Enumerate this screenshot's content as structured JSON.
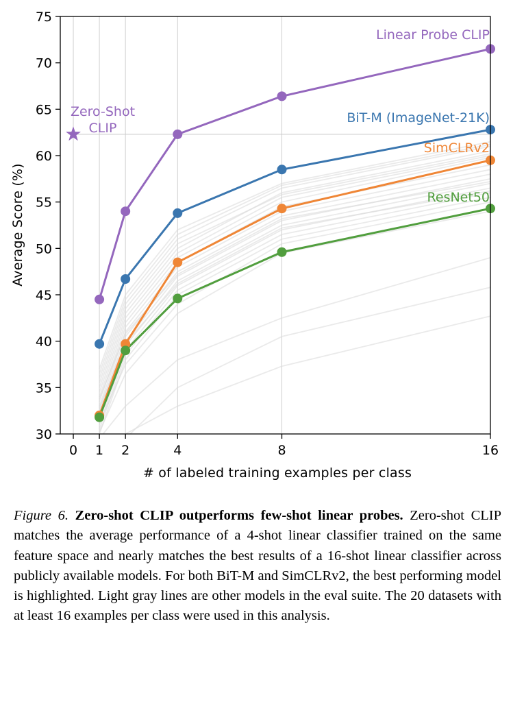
{
  "chart_data": {
    "type": "line",
    "xlabel": "# of labeled training examples per class",
    "ylabel": "Average Score (%)",
    "xlim": [
      -0.5,
      16
    ],
    "ylim": [
      30,
      75
    ],
    "xticks": [
      0,
      1,
      2,
      4,
      8,
      16
    ],
    "yticks": [
      30,
      35,
      40,
      45,
      50,
      55,
      60,
      65,
      70,
      75
    ],
    "grid": "vertical at x ticks",
    "x": [
      1,
      2,
      4,
      8,
      16
    ],
    "series": [
      {
        "name": "Linear Probe CLIP",
        "color": "#9467bd",
        "values": [
          44.5,
          54.0,
          62.3,
          66.4,
          71.5
        ]
      },
      {
        "name": "BiT-M (ImageNet-21K)",
        "color": "#3a76af",
        "values": [
          39.7,
          46.7,
          53.8,
          58.5,
          62.8
        ]
      },
      {
        "name": "SimCLRv2",
        "color": "#ef8636",
        "values": [
          32.0,
          39.7,
          48.5,
          54.3,
          59.5
        ]
      },
      {
        "name": "ResNet50",
        "color": "#519e3e",
        "values": [
          31.8,
          39.0,
          44.6,
          49.6,
          54.3
        ]
      }
    ],
    "zero_shot": {
      "label_line1": "Zero-Shot",
      "label_line2": "CLIP",
      "x": 0,
      "y": 62.3,
      "color": "#9467bd"
    },
    "reference_line_y": 62.3,
    "background_models_color": "#d9d9d9",
    "background_models": [
      [
        36.0,
        44.0,
        51.0,
        56.5,
        61.0
      ],
      [
        35.0,
        43.0,
        50.0,
        56.0,
        60.5
      ],
      [
        34.5,
        42.5,
        49.5,
        55.5,
        60.0
      ],
      [
        34.0,
        42.0,
        49.0,
        55.0,
        59.8
      ],
      [
        33.5,
        41.5,
        48.5,
        54.5,
        59.0
      ],
      [
        33.0,
        41.0,
        48.0,
        54.0,
        58.5
      ],
      [
        32.5,
        40.5,
        47.5,
        53.5,
        58.0
      ],
      [
        32.0,
        40.0,
        47.0,
        53.0,
        57.5
      ],
      [
        31.5,
        39.5,
        46.5,
        52.5,
        57.0
      ],
      [
        31.0,
        39.0,
        46.0,
        52.0,
        56.5
      ],
      [
        30.5,
        38.5,
        45.5,
        51.5,
        56.0
      ],
      [
        30.0,
        38.0,
        45.0,
        51.0,
        55.5
      ],
      [
        37.0,
        45.0,
        52.0,
        57.0,
        61.5
      ],
      [
        36.5,
        44.5,
        51.5,
        56.8,
        61.2
      ],
      [
        35.5,
        43.5,
        50.5,
        55.8,
        60.2
      ],
      [
        33.8,
        40.8,
        47.2,
        53.2,
        57.2
      ],
      [
        32.8,
        39.8,
        46.2,
        52.2,
        56.2
      ],
      [
        31.2,
        37.5,
        44.0,
        50.5,
        55.0
      ],
      [
        30.2,
        36.5,
        43.0,
        49.5,
        54.0
      ],
      [
        29.5,
        33.0,
        38.0,
        42.5,
        49.0
      ],
      [
        28.0,
        30.0,
        33.0,
        37.3,
        42.7
      ],
      [
        27.0,
        29.5,
        35.0,
        40.5,
        45.8
      ]
    ]
  },
  "caption": {
    "figure_label": "Figure 6.",
    "title": "Zero-shot CLIP outperforms few-shot linear probes.",
    "body": "Zero-shot CLIP matches the average performance of a 4-shot linear classifier trained on the same feature space and nearly matches the best results of a 16-shot linear classifier across publicly available models.  For both BiT-M and SimCLRv2, the best performing model is highlighted. Light gray lines are other models in the eval suite.  The 20 datasets with at least 16 examples per class were used in this analysis."
  }
}
